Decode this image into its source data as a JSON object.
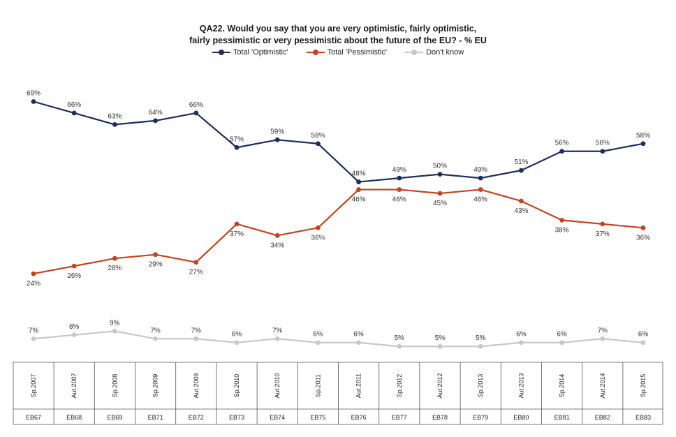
{
  "chart_data": {
    "type": "line",
    "title": {
      "line1": "QA22. Would you say that you are very optimistic, fairly optimistic,",
      "line2": "fairly pessimistic or very pessimistic about the future of the EU? - % EU"
    },
    "categories": [
      "Sp.2007",
      "Aut.2007",
      "Sp.2008",
      "Sp.2009",
      "Aut.2009",
      "Sp.2010",
      "Aut.2010",
      "Sp.2011",
      "Aut.2011",
      "Sp.2012",
      "Aut.2012",
      "Sp.2013",
      "Aut.2013",
      "Sp.2014",
      "Aut.2014",
      "Sp.2015"
    ],
    "waves": [
      "EB67",
      "EB68",
      "EB69",
      "EB71",
      "EB72",
      "EB73",
      "EB74",
      "EB75",
      "EB76",
      "EB77",
      "EB78",
      "EB79",
      "EB80",
      "EB81",
      "EB82",
      "EB83"
    ],
    "series": [
      {
        "name": "Total 'Optimistic'",
        "color": "#1f2d5c",
        "label_position": "above",
        "values": [
          69,
          66,
          63,
          64,
          66,
          57,
          59,
          58,
          48,
          49,
          50,
          49,
          51,
          56,
          56,
          58
        ]
      },
      {
        "name": "Total 'Pessimistic'",
        "color": "#c0451f",
        "label_position": "below",
        "values": [
          24,
          26,
          28,
          29,
          27,
          37,
          34,
          36,
          46,
          46,
          45,
          46,
          43,
          38,
          37,
          36
        ]
      },
      {
        "name": "Don't know",
        "color": "#c8c8c8",
        "label_position": "above",
        "values": [
          7,
          8,
          9,
          7,
          7,
          6,
          7,
          6,
          6,
          5,
          5,
          5,
          6,
          6,
          7,
          6
        ]
      }
    ],
    "value_suffix": "%",
    "legend_position": "top",
    "grid": false
  }
}
